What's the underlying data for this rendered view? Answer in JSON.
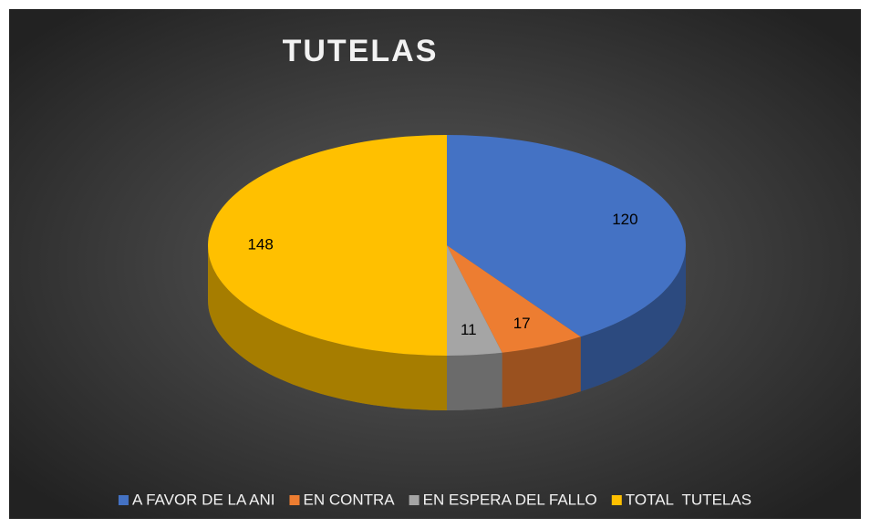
{
  "chart_data": {
    "type": "pie",
    "title": "TUTELAS",
    "categories": [
      "A FAVOR DE LA ANI",
      "EN CONTRA",
      "EN ESPERA DEL FALLO",
      "TOTAL  TUTELAS"
    ],
    "values": [
      120,
      17,
      11,
      148
    ],
    "colors": [
      "#4472c4",
      "#ed7d31",
      "#a5a5a5",
      "#ffc000"
    ],
    "legend": "bottom"
  }
}
